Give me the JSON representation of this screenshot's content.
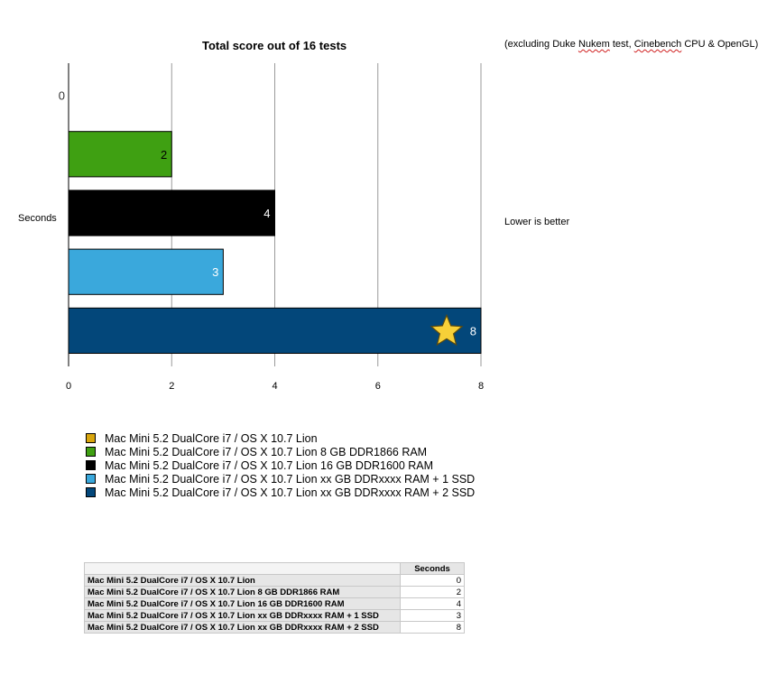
{
  "chart_data": {
    "type": "bar",
    "orientation": "horizontal",
    "title": "Total score out of 16 tests",
    "ylabel": "Seconds",
    "xlim": [
      0,
      8
    ],
    "x_ticks": [
      "0",
      "2",
      "4",
      "6",
      "8"
    ],
    "grid": "vertical",
    "categories": [
      "Mac Mini 5.2 DualCore i7 / OS X 10.7 Lion",
      "Mac Mini 5.2 DualCore i7 / OS X 10.7 Lion 8 GB DDR1866 RAM",
      "Mac Mini 5.2 DualCore i7 / OS X 10.7 Lion 16 GB DDR1600 RAM",
      "Mac Mini 5.2 DualCore i7 / OS X 10.7 Lion xx GB DDRxxxx RAM + 1 SSD",
      "Mac Mini 5.2 DualCore i7 / OS X 10.7 Lion xx GB DDRxxxx RAM + 2 SSD"
    ],
    "values": [
      0,
      2,
      4,
      3,
      8
    ],
    "data_labels": [
      "0",
      "2",
      "4",
      "3",
      "8"
    ],
    "colors": [
      "#d9a60e",
      "#3fa012",
      "#000000",
      "#3aa8dc",
      "#03477a"
    ],
    "label_colors": [
      "#333333",
      "#000000",
      "#ffffff",
      "#ffffff",
      "#ffffff"
    ],
    "star_marker_on": "Mac Mini 5.2 DualCore i7 / OS X 10.7 Lion xx GB DDRxxxx RAM + 2 SSD",
    "legend_position": "bottom-left"
  },
  "note": {
    "prefix": "(excluding Duke ",
    "nukem": "Nukem",
    "middle": " test, ",
    "cinebench": "Cinebench",
    "suffix": " CPU & OpenGL)"
  },
  "annotation": "Lower is better",
  "legend": [
    "Mac Mini 5.2 DualCore i7 / OS X 10.7 Lion",
    "Mac Mini 5.2 DualCore i7 / OS X 10.7 Lion 8 GB DDR1866 RAM",
    "Mac Mini 5.2 DualCore i7 / OS X 10.7 Lion 16 GB DDR1600 RAM",
    "Mac Mini 5.2 DualCore i7 / OS X 10.7 Lion xx GB DDRxxxx RAM + 1 SSD",
    "Mac Mini 5.2 DualCore i7 / OS X 10.7 Lion xx GB DDRxxxx RAM + 2 SSD"
  ],
  "table": {
    "header": "Seconds",
    "rows": [
      {
        "label": "Mac Mini 5.2 DualCore i7 / OS X 10.7 Lion",
        "value": "0"
      },
      {
        "label": "Mac Mini 5.2 DualCore i7 / OS X 10.7 Lion 8 GB DDR1866 RAM",
        "value": "2"
      },
      {
        "label": "Mac Mini 5.2 DualCore i7 / OS X 10.7 Lion 16 GB DDR1600 RAM",
        "value": "4"
      },
      {
        "label": "Mac Mini 5.2 DualCore i7 / OS X 10.7 Lion xx GB DDRxxxx RAM + 1 SSD",
        "value": "3"
      },
      {
        "label": "Mac Mini 5.2 DualCore i7 / OS X 10.7 Lion xx GB DDRxxxx RAM + 2 SSD",
        "value": "8"
      }
    ]
  }
}
